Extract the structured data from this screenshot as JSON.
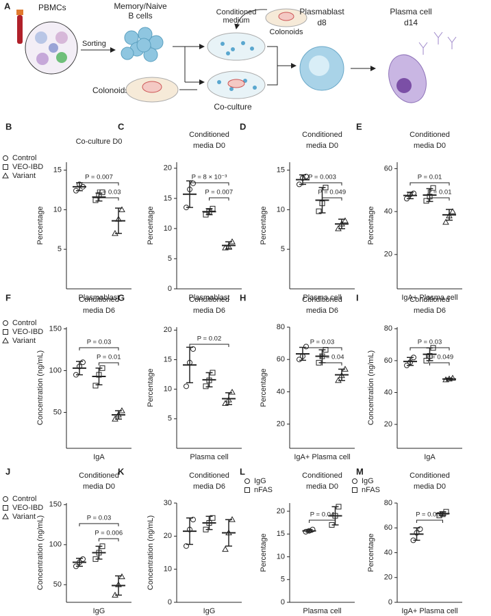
{
  "schematic": {
    "label": "A",
    "pbmcs": "PBMCs",
    "sorting": "Sorting",
    "bcells": [
      "Memory/Naive",
      "B cells"
    ],
    "colonoids_left": "Colonoids",
    "conditioned": [
      "Conditioned",
      "medium"
    ],
    "colonoids_top": "Colonoids",
    "plasmablast": [
      "Plasmablast",
      "d8"
    ],
    "plasma": [
      "Plasma cell",
      "d14"
    ],
    "coculture": "Co-culture"
  },
  "chart_data": [
    {
      "type": "scatter",
      "panel": "B",
      "title": [
        "Co-culture D0"
      ],
      "ylabel": "Percentage",
      "xlabel": "Plasmablast",
      "ylim": [
        0,
        16
      ],
      "yticks": [
        5,
        10,
        15
      ],
      "color": "#222",
      "legend": true,
      "series": [
        {
          "name": "Control",
          "marker": "circle",
          "values": [
            12.4,
            13.2,
            12.9
          ],
          "mean": 12.9,
          "sd": 0.5
        },
        {
          "name": "VEO-IBD",
          "marker": "square",
          "values": [
            11.2,
            11.8,
            12.2
          ],
          "mean": 11.6,
          "sd": 0.5
        },
        {
          "name": "Variant",
          "marker": "triangle",
          "values": [
            7.0,
            8.8,
            10.0
          ],
          "mean": 8.6,
          "sd": 1.6
        }
      ],
      "comparisons": [
        {
          "groups": [
            0,
            2
          ],
          "p": 0.007,
          "label": "P = 0.007"
        },
        {
          "groups": [
            1,
            2
          ],
          "p": 0.03,
          "label": "P = 0.03"
        }
      ]
    },
    {
      "type": "scatter",
      "panel": "C",
      "title": [
        "Conditioned",
        "media D0"
      ],
      "ylabel": "Percentage",
      "xlabel": "Plasmablast",
      "ylim": [
        0,
        21
      ],
      "yticks": [
        0,
        5,
        10,
        15,
        20
      ],
      "color": "#222",
      "legend": false,
      "series": [
        {
          "marker": "circle",
          "values": [
            13.5,
            16.5,
            17.5
          ],
          "mean": 15.7,
          "sd": 2.2
        },
        {
          "marker": "square",
          "values": [
            12.3,
            12.8,
            13.3
          ],
          "mean": 12.8,
          "sd": 0.5
        },
        {
          "marker": "triangle",
          "values": [
            6.8,
            7.0,
            7.8
          ],
          "mean": 7.2,
          "sd": 0.6
        }
      ],
      "comparisons": [
        {
          "groups": [
            0,
            2
          ],
          "p": 0.008,
          "label": "P = 8 × 10⁻³"
        },
        {
          "groups": [
            1,
            2
          ],
          "p": 0.007,
          "label": "P = 0.007"
        }
      ]
    },
    {
      "type": "scatter",
      "panel": "D",
      "title": [
        "Conditioned",
        "media D0"
      ],
      "ylabel": "Percentage",
      "xlabel": "Plasma cell",
      "ylim": [
        0,
        16
      ],
      "yticks": [
        5,
        10,
        15
      ],
      "color": "#222",
      "legend": false,
      "series": [
        {
          "marker": "circle",
          "values": [
            13.2,
            14.0,
            14.2
          ],
          "mean": 13.8,
          "sd": 0.6
        },
        {
          "marker": "square",
          "values": [
            9.8,
            10.8,
            12.8
          ],
          "mean": 11.2,
          "sd": 1.6
        },
        {
          "marker": "triangle",
          "values": [
            7.6,
            8.2,
            8.6
          ],
          "mean": 8.2,
          "sd": 0.6
        }
      ],
      "comparisons": [
        {
          "groups": [
            0,
            2
          ],
          "p": 0.003,
          "label": "P = 0.003"
        },
        {
          "groups": [
            1,
            2
          ],
          "p": 0.049,
          "label": "P = 0.049"
        }
      ]
    },
    {
      "type": "scatter",
      "panel": "E",
      "title": [
        "Conditioned",
        "media D0"
      ],
      "ylabel": "Percentage",
      "xlabel": "IgA+ Plasma cell",
      "ylim": [
        4,
        63
      ],
      "yticks": [
        20,
        40,
        60
      ],
      "color": "#222",
      "legend": false,
      "series": [
        {
          "marker": "circle",
          "values": [
            46,
            48,
            48.5
          ],
          "mean": 47.5,
          "sd": 1.5
        },
        {
          "marker": "square",
          "values": [
            45,
            47,
            51
          ],
          "mean": 47.7,
          "sd": 3
        },
        {
          "marker": "triangle",
          "values": [
            35,
            38,
            40
          ],
          "mean": 38.5,
          "sd": 2.5
        }
      ],
      "comparisons": [
        {
          "groups": [
            0,
            2
          ],
          "p": 0.01,
          "label": "P = 0.01"
        },
        {
          "groups": [
            1,
            2
          ],
          "p": 0.01,
          "label": "P = 0.01"
        }
      ]
    },
    {
      "type": "scatter",
      "panel": "F",
      "title": [
        "Conditioned",
        "media D6"
      ],
      "ylabel": "Concentration (ng/mL)",
      "xlabel": "IgA",
      "ylim": [
        7,
        152
      ],
      "yticks": [
        50,
        100,
        150
      ],
      "color": "#222",
      "legend": true,
      "series": [
        {
          "name": "Control",
          "marker": "circle",
          "values": [
            95,
            105,
            110
          ],
          "mean": 103,
          "sd": 8
        },
        {
          "name": "VEO-IBD",
          "marker": "square",
          "values": [
            82,
            95,
            103
          ],
          "mean": 93,
          "sd": 10
        },
        {
          "name": "Variant",
          "marker": "triangle",
          "values": [
            42,
            47,
            52
          ],
          "mean": 47,
          "sd": 5
        }
      ],
      "comparisons": [
        {
          "groups": [
            0,
            2
          ],
          "p": 0.03,
          "label": "P = 0.03"
        },
        {
          "groups": [
            1,
            2
          ],
          "p": 0.01,
          "label": "P = 0.01"
        }
      ]
    },
    {
      "type": "scatter",
      "panel": "G",
      "title": [
        "Conditioned",
        "media D6"
      ],
      "ylabel": "Percentage",
      "xlabel": "Plasma cell",
      "ylim": [
        0,
        20.5
      ],
      "yticks": [
        5,
        10,
        15,
        20
      ],
      "color": "#222",
      "legend": false,
      "series": [
        {
          "marker": "circle",
          "values": [
            10.5,
            14.5,
            16.8
          ],
          "mean": 14.1,
          "sd": 3
        },
        {
          "marker": "square",
          "values": [
            10.5,
            11.5,
            12.8
          ],
          "mean": 11.6,
          "sd": 1.2
        },
        {
          "marker": "triangle",
          "values": [
            7.6,
            8.2,
            9.5
          ],
          "mean": 8.4,
          "sd": 1
        }
      ],
      "comparisons": [
        {
          "groups": [
            0,
            2
          ],
          "p": 0.02,
          "label": "P = 0.02"
        }
      ]
    },
    {
      "type": "scatter",
      "panel": "H",
      "title": [
        "Conditioned",
        "media D6"
      ],
      "ylabel": "Percentage",
      "xlabel": "IgA+ Plasma cell",
      "ylim": [
        5,
        80
      ],
      "yticks": [
        20,
        40,
        60,
        80
      ],
      "color": "#222",
      "legend": false,
      "series": [
        {
          "marker": "circle",
          "values": [
            60,
            62,
            68
          ],
          "mean": 63.5,
          "sd": 4
        },
        {
          "marker": "square",
          "values": [
            58,
            62,
            66
          ],
          "mean": 62,
          "sd": 4
        },
        {
          "marker": "triangle",
          "values": [
            47,
            50,
            54
          ],
          "mean": 50.5,
          "sd": 3.5
        }
      ],
      "comparisons": [
        {
          "groups": [
            0,
            2
          ],
          "p": 0.03,
          "label": "P = 0.03"
        },
        {
          "groups": [
            1,
            2
          ],
          "p": 0.04,
          "label": "P = 0.04"
        }
      ]
    },
    {
      "type": "scatter",
      "panel": "I",
      "title": [
        "Conditioned",
        "media D6"
      ],
      "ylabel": "Concentration (ng/mL)",
      "xlabel": "IgA",
      "ylim": [
        5,
        81
      ],
      "yticks": [
        20,
        40,
        60,
        80
      ],
      "color": "#222",
      "legend": false,
      "series": [
        {
          "marker": "circle",
          "values": [
            57,
            59,
            62
          ],
          "mean": 59.5,
          "sd": 2.5
        },
        {
          "marker": "square",
          "values": [
            60,
            63,
            68
          ],
          "mean": 64,
          "sd": 4
        },
        {
          "marker": "triangle",
          "values": [
            48,
            48.5,
            49
          ],
          "mean": 48.5,
          "sd": 0.5
        }
      ],
      "comparisons": [
        {
          "groups": [
            0,
            2
          ],
          "p": 0.03,
          "label": "P = 0.03"
        },
        {
          "groups": [
            1,
            2
          ],
          "p": 0.049,
          "label": "P = 0.049"
        }
      ]
    },
    {
      "type": "scatter",
      "panel": "J",
      "title": [
        "Conditioned",
        "media D0"
      ],
      "ylabel": "Concentration (ng/mL)",
      "xlabel": "IgG",
      "ylim": [
        28,
        152
      ],
      "yticks": [
        50,
        100,
        150
      ],
      "color": "#222",
      "legend": true,
      "series": [
        {
          "name": "Control",
          "marker": "circle",
          "values": [
            73,
            78,
            82
          ],
          "mean": 78,
          "sd": 5
        },
        {
          "name": "VEO-IBD",
          "marker": "square",
          "values": [
            82,
            90,
            98
          ],
          "mean": 90,
          "sd": 8
        },
        {
          "name": "Variant",
          "marker": "triangle",
          "values": [
            37,
            50,
            60
          ],
          "mean": 49,
          "sd": 12
        }
      ],
      "comparisons": [
        {
          "groups": [
            0,
            2
          ],
          "p": 0.03,
          "label": "P = 0.03"
        },
        {
          "groups": [
            1,
            2
          ],
          "p": 0.006,
          "label": "P = 0.006"
        }
      ]
    },
    {
      "type": "scatter",
      "panel": "K",
      "title": [
        "Conditioned",
        "media D6"
      ],
      "ylabel": "Concentration (ng/mL)",
      "xlabel": "IgG",
      "ylim": [
        0,
        30
      ],
      "yticks": [
        0,
        10,
        20,
        30
      ],
      "color": "#222",
      "legend": false,
      "series": [
        {
          "marker": "circle",
          "values": [
            17,
            22,
            25
          ],
          "mean": 21.5,
          "sd": 4
        },
        {
          "marker": "square",
          "values": [
            22,
            24,
            25.5
          ],
          "mean": 24,
          "sd": 2
        },
        {
          "marker": "triangle",
          "values": [
            16,
            21,
            25
          ],
          "mean": 21,
          "sd": 4
        }
      ],
      "comparisons": []
    },
    {
      "type": "scatter",
      "panel": "L",
      "title": [
        "Conditioned",
        "media D0"
      ],
      "ylabel": "Percentage",
      "xlabel": "Plasma cell",
      "ylim": [
        0,
        21.8
      ],
      "yticks": [
        0,
        5,
        10,
        15,
        20
      ],
      "color": "#222",
      "legend": true,
      "series": [
        {
          "name": "IgG",
          "marker": "circle",
          "values": [
            15.5,
            15.7,
            16.0
          ],
          "mean": 15.7,
          "sd": 0.3
        },
        {
          "name": "nFAS",
          "marker": "square",
          "values": [
            17,
            19,
            21
          ],
          "mean": 19,
          "sd": 2
        }
      ],
      "comparisons": [
        {
          "groups": [
            0,
            1
          ],
          "p": 0.04,
          "label": "P = 0.04"
        }
      ]
    },
    {
      "type": "scatter",
      "panel": "M",
      "title": [
        "Conditioned",
        "media D0"
      ],
      "ylabel": "Percentage",
      "xlabel": "IgA+ Plasma cell",
      "ylim": [
        0,
        80
      ],
      "yticks": [
        0,
        20,
        40,
        60,
        80
      ],
      "color": "#222",
      "legend": true,
      "series": [
        {
          "name": "IgG",
          "marker": "circle",
          "values": [
            50,
            56,
            59
          ],
          "mean": 55,
          "sd": 5
        },
        {
          "name": "nFAS",
          "marker": "square",
          "values": [
            70,
            71,
            73
          ],
          "mean": 71.5,
          "sd": 1.5
        }
      ],
      "comparisons": [
        {
          "groups": [
            0,
            1
          ],
          "p": 0.005,
          "label": "P = 0.005"
        }
      ]
    }
  ]
}
